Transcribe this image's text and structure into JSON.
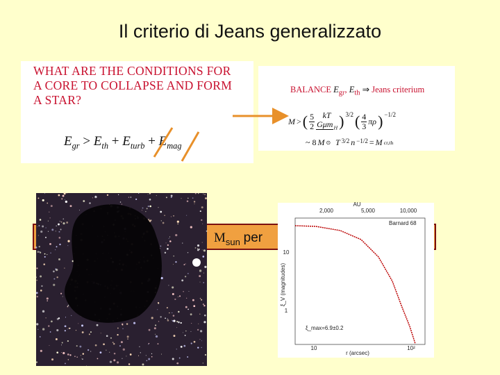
{
  "title": "Il criterio di Jeans generalizzato",
  "question": [
    "WHAT ARE THE CONDITIONS FOR",
    "A CORE TO COLLAPSE AND FORM",
    "A STAR?"
  ],
  "inequality": {
    "symbol": "E",
    "subs": [
      "gr",
      "th",
      "turb",
      "mag"
    ],
    "gt": ">",
    "plus": "+"
  },
  "jeans": {
    "label": "BALANCE",
    "implies": "⇒",
    "result": "Jeans criterium",
    "mass": "M",
    "f1": [
      "5",
      "2"
    ],
    "f2": [
      "kT",
      "Gμm",
      "H"
    ],
    "e1": "3/2",
    "f3": [
      "4",
      "3"
    ],
    "pirho": "πρ",
    "e2": "−1/2",
    "approx": "~ 8",
    "sun": "⊙",
    "T": "T",
    "n": "n",
    "eq": "=",
    "crit": "cr,th"
  },
  "bar": {
    "m": "M",
    "sub": "sun",
    "per": "per"
  },
  "plot": {
    "top_label": "AU",
    "top_ticks": [
      "2,000",
      "5,000",
      "10,000"
    ],
    "name": "Barnard 68",
    "y_ticks": [
      "10",
      "1"
    ],
    "y_label": "ξ_V (magnitudes)",
    "annotation": "ξ_max=6.9±0.2",
    "x_ticks": [
      "10",
      "10²"
    ],
    "x_label": "r (arcsec)"
  }
}
